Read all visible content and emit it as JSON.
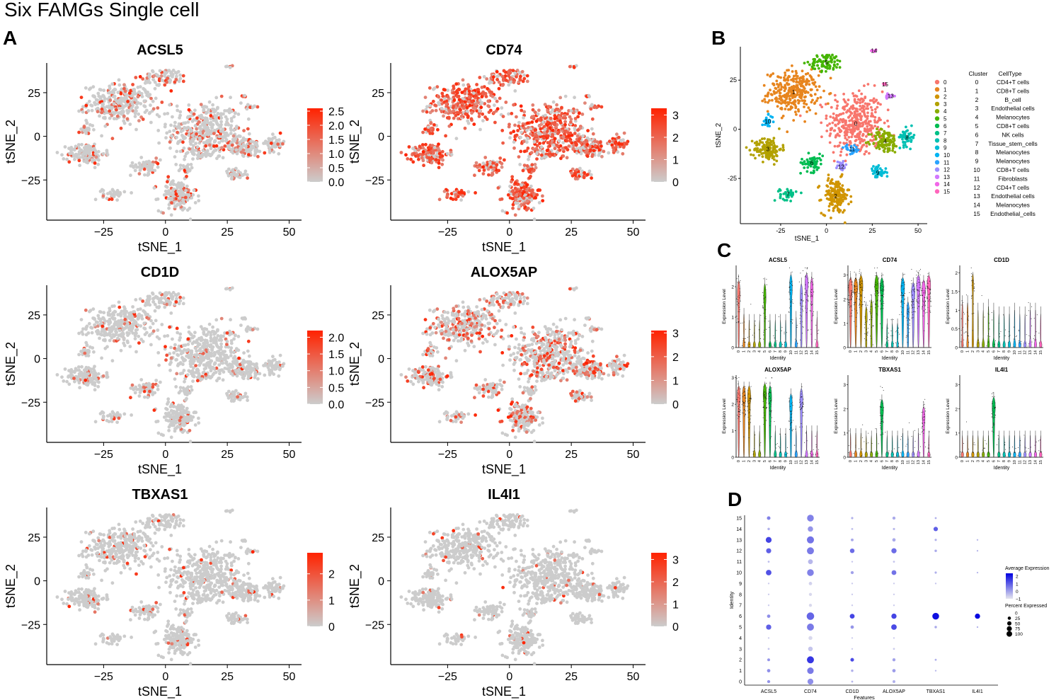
{
  "figure": {
    "title": "Six FAMGs Single cell",
    "panel_labels": [
      "A",
      "B",
      "C",
      "D"
    ]
  },
  "chart_data": [
    {
      "id": "A",
      "type": "scatter",
      "subtype": "tsne-feature-plots",
      "xlabel": "tSNE_1",
      "ylabel": "tSNE_2",
      "xlim": [
        -48,
        55
      ],
      "ylim": [
        -48,
        42
      ],
      "xticks": [
        -25,
        0,
        25,
        50
      ],
      "yticks": [
        -25,
        0,
        25
      ],
      "xtick_labels": [
        "−25",
        "0",
        "25",
        "50"
      ],
      "ytick_labels": [
        "−25",
        "0",
        "25"
      ],
      "low_color": "#cccccc",
      "high_color": "#ff2200",
      "features": [
        {
          "name": "ACSL5",
          "legend_max": 2.6,
          "legend_ticks": [
            0.0,
            0.5,
            1.0,
            1.5,
            2.0,
            2.5
          ],
          "legend_labels": [
            "0.0",
            "0.5",
            "1.0",
            "1.5",
            "2.0",
            "2.5"
          ],
          "expressing_fraction": 0.22
        },
        {
          "name": "CD74",
          "legend_max": 3.3,
          "legend_ticks": [
            0,
            1,
            2,
            3
          ],
          "legend_labels": [
            "0",
            "1",
            "2",
            "3"
          ],
          "expressing_fraction": 0.78
        },
        {
          "name": "CD1D",
          "legend_max": 2.2,
          "legend_ticks": [
            0.0,
            0.5,
            1.0,
            1.5,
            2.0
          ],
          "legend_labels": [
            "0.0",
            "0.5",
            "1.0",
            "1.5",
            "2.0"
          ],
          "expressing_fraction": 0.1
        },
        {
          "name": "ALOX5AP",
          "legend_max": 3.1,
          "legend_ticks": [
            0,
            1,
            2,
            3
          ],
          "legend_labels": [
            "0",
            "1",
            "2",
            "3"
          ],
          "expressing_fraction": 0.3
        },
        {
          "name": "TBXAS1",
          "legend_max": 2.8,
          "legend_ticks": [
            0,
            1,
            2
          ],
          "legend_labels": [
            "0",
            "1",
            "2"
          ],
          "expressing_fraction": 0.06
        },
        {
          "name": "IL4I1",
          "legend_max": 3.3,
          "legend_ticks": [
            0,
            1,
            2,
            3
          ],
          "legend_labels": [
            "0",
            "1",
            "2",
            "3"
          ],
          "expressing_fraction": 0.04
        }
      ]
    },
    {
      "id": "B",
      "type": "scatter",
      "subtype": "tsne-clusters",
      "xlabel": "tSNE_1",
      "ylabel": "tSNE_2",
      "xlim": [
        -47,
        55
      ],
      "ylim": [
        -48,
        42
      ],
      "xticks": [
        -25,
        0,
        25,
        50
      ],
      "yticks": [
        -25,
        0,
        25
      ],
      "xtick_labels": [
        "-25",
        "0",
        "25",
        "50"
      ],
      "ytick_labels": [
        "-25",
        "0",
        "25"
      ],
      "table_header": [
        "Cluster",
        "CellType"
      ],
      "clusters": [
        {
          "id": "0",
          "cell_type": "CD4+T cells",
          "color": "#F8766D",
          "center": [
            16,
            3
          ],
          "spread": [
            10,
            11
          ],
          "n": 380
        },
        {
          "id": "1",
          "cell_type": "CD8+T cells",
          "color": "#E7851E",
          "center": [
            -18,
            19
          ],
          "spread": [
            9,
            7
          ],
          "n": 300
        },
        {
          "id": "2",
          "cell_type": "B_cell",
          "color": "#D09400",
          "center": [
            5,
            -34
          ],
          "spread": [
            5,
            6
          ],
          "n": 160
        },
        {
          "id": "3",
          "cell_type": "Endothelial cells",
          "color": "#B2A100",
          "center": [
            -32,
            -10
          ],
          "spread": [
            5,
            4
          ],
          "n": 140
        },
        {
          "id": "4",
          "cell_type": "Melanocytes",
          "color": "#89AC00",
          "center": [
            32,
            -6
          ],
          "spread": [
            5,
            4
          ],
          "n": 110
        },
        {
          "id": "5",
          "cell_type": "CD8+T cells",
          "color": "#45B500",
          "center": [
            0,
            34
          ],
          "spread": [
            6,
            3
          ],
          "n": 80
        },
        {
          "id": "6",
          "cell_type": "NK cells",
          "color": "#00BC51",
          "center": [
            -8,
            -17
          ],
          "spread": [
            4,
            3
          ],
          "n": 60
        },
        {
          "id": "7",
          "cell_type": "Tissue_stem_cells",
          "color": "#00C087",
          "center": [
            -21,
            -33
          ],
          "spread": [
            3,
            2
          ],
          "n": 40
        },
        {
          "id": "8",
          "cell_type": "Melanocytes",
          "color": "#00C0B2",
          "center": [
            44,
            -4
          ],
          "spread": [
            3,
            3
          ],
          "n": 45
        },
        {
          "id": "9",
          "cell_type": "Melanocytes",
          "color": "#00BCD6",
          "center": [
            28,
            -22
          ],
          "spread": [
            3,
            2
          ],
          "n": 40
        },
        {
          "id": "10",
          "cell_type": "CD8+T cells",
          "color": "#00B3F2",
          "center": [
            -32,
            4
          ],
          "spread": [
            2,
            2
          ],
          "n": 25
        },
        {
          "id": "11",
          "cell_type": "Fibroblasts",
          "color": "#29A3FF",
          "center": [
            14,
            -10
          ],
          "spread": [
            3,
            1.5
          ],
          "n": 25
        },
        {
          "id": "12",
          "cell_type": "CD4+T cells",
          "color": "#9C8DFF",
          "center": [
            8,
            -19
          ],
          "spread": [
            2,
            2
          ],
          "n": 25
        },
        {
          "id": "13",
          "cell_type": "Endothelial  cells",
          "color": "#D277FF",
          "center": [
            35,
            17
          ],
          "spread": [
            2,
            1
          ],
          "n": 12
        },
        {
          "id": "14",
          "cell_type": "Melanocytes",
          "color": "#F166E8",
          "center": [
            26,
            40
          ],
          "spread": [
            1,
            0.5
          ],
          "n": 5
        },
        {
          "id": "15",
          "cell_type": "Endothelial_cells",
          "color": "#FF65BC",
          "center": [
            32,
            23
          ],
          "spread": [
            1,
            0.5
          ],
          "n": 5
        }
      ]
    },
    {
      "id": "C",
      "type": "violin",
      "xlabel": "Identity",
      "ylabel": "Expression Level",
      "categories": [
        "0",
        "1",
        "2",
        "3",
        "4",
        "5",
        "6",
        "7",
        "8",
        "9",
        "10",
        "11",
        "12",
        "13",
        "14",
        "15"
      ],
      "genes": [
        {
          "name": "ACSL5",
          "ymax": 2.7,
          "yticks": [
            0,
            1,
            2
          ],
          "medians": [
            1.5,
            0.4,
            0.2,
            0.2,
            0.2,
            1.4,
            0.2,
            0.2,
            0.2,
            0.2,
            1.7,
            0.3,
            1.4,
            1.9,
            1.6,
            0.3
          ],
          "expressing": [
            0.7,
            0.2,
            0.1,
            0.1,
            0.05,
            0.6,
            0.1,
            0.1,
            0.05,
            0.1,
            0.7,
            0.1,
            0.6,
            0.8,
            0.7,
            0.1
          ]
        },
        {
          "name": "CD74",
          "ymax": 3.4,
          "yticks": [
            0,
            1,
            2,
            3
          ],
          "medians": [
            2.2,
            2.2,
            2.3,
            1.0,
            1.3,
            2.3,
            2.2,
            0.3,
            0.3,
            0.3,
            2.2,
            1.2,
            2.0,
            2.3,
            2.1,
            2.3
          ],
          "expressing": [
            0.95,
            0.95,
            0.95,
            0.5,
            0.5,
            0.95,
            0.9,
            0.2,
            0.2,
            0.3,
            0.9,
            0.6,
            0.9,
            0.95,
            0.9,
            0.9
          ]
        },
        {
          "name": "CD1D",
          "ymax": 2.2,
          "yticks": [
            0.0,
            0.5,
            1.0,
            1.5,
            2.0
          ],
          "medians": [
            0.5,
            0.5,
            1.5,
            0.3,
            0.3,
            0.4,
            0.3,
            0.2,
            0.2,
            0.2,
            0.3,
            0.2,
            0.2,
            0.3,
            0.3,
            0.2
          ],
          "expressing": [
            0.3,
            0.3,
            0.4,
            0.05,
            0.05,
            0.2,
            0.05,
            0.05,
            0.05,
            0.05,
            0.1,
            0.05,
            0.05,
            0.2,
            0.1,
            0.05
          ]
        },
        {
          "name": "ALOX5AP",
          "ymax": 3.1,
          "yticks": [
            0,
            1,
            2,
            3
          ],
          "medians": [
            2.0,
            2.0,
            2.0,
            0.3,
            0.3,
            2.1,
            2.0,
            0.3,
            0.2,
            0.2,
            1.7,
            0.3,
            1.9,
            0.3,
            0.3,
            0.3
          ],
          "expressing": [
            0.8,
            0.8,
            0.8,
            0.05,
            0.05,
            0.85,
            0.8,
            0.05,
            0.05,
            0.05,
            0.7,
            0.05,
            0.75,
            0.1,
            0.1,
            0.1
          ]
        },
        {
          "name": "TBXAS1",
          "ymax": 3.4,
          "yticks": [
            0,
            1,
            2,
            3
          ],
          "medians": [
            0.3,
            0.3,
            0.3,
            0.2,
            0.2,
            0.3,
            1.7,
            0.2,
            0.2,
            0.2,
            0.3,
            0.2,
            0.2,
            0.3,
            1.4,
            0.2
          ],
          "expressing": [
            0.05,
            0.05,
            0.05,
            0.02,
            0.02,
            0.05,
            0.8,
            0.02,
            0.02,
            0.02,
            0.05,
            0.02,
            0.05,
            0.05,
            0.7,
            0.05
          ]
        },
        {
          "name": "IL4I1",
          "ymax": 3.4,
          "yticks": [
            0,
            1,
            2,
            3
          ],
          "medians": [
            0.2,
            0.2,
            0.2,
            0.2,
            0.2,
            0.2,
            1.8,
            0.2,
            0.2,
            0.2,
            0.2,
            0.2,
            0.2,
            0.2,
            0.2,
            0.2
          ],
          "expressing": [
            0.03,
            0.03,
            0.03,
            0.02,
            0.02,
            0.03,
            0.8,
            0.02,
            0.02,
            0.02,
            0.03,
            0.02,
            0.03,
            0.03,
            0.03,
            0.03
          ]
        }
      ]
    },
    {
      "id": "D",
      "type": "dotplot",
      "xlabel": "Features",
      "ylabel": "Identity",
      "features": [
        "ACSL5",
        "CD74",
        "CD1D",
        "ALOX5AP",
        "TBXAS1",
        "IL4I1"
      ],
      "identities": [
        "0",
        "1",
        "2",
        "3",
        "4",
        "5",
        "6",
        "7",
        "8",
        "9",
        "10",
        "11",
        "12",
        "13",
        "14",
        "15"
      ],
      "legend_avg_title": "Average Expression",
      "legend_avg_ticks": [
        "2",
        "1",
        "0",
        "−1"
      ],
      "legend_avg_range": [
        -1,
        2.4
      ],
      "legend_pct_title": "Percent Expressed",
      "legend_pct_values": [
        0,
        25,
        50,
        75,
        100
      ],
      "legend_pct_labels": [
        "0",
        "25",
        "50",
        "75",
        "100"
      ],
      "low_color": "#e6e6ee",
      "high_color": "#0000e0",
      "pct": [
        [
          8,
          40,
          2,
          6,
          0,
          0
        ],
        [
          10,
          50,
          4,
          10,
          1,
          0
        ],
        [
          6,
          60,
          12,
          8,
          2,
          0
        ],
        [
          2,
          22,
          1,
          2,
          0,
          0
        ],
        [
          1,
          15,
          1,
          1,
          0,
          0
        ],
        [
          30,
          60,
          10,
          35,
          4,
          1
        ],
        [
          10,
          70,
          25,
          30,
          55,
          30
        ],
        [
          1,
          8,
          1,
          1,
          0,
          0
        ],
        [
          1,
          8,
          1,
          1,
          0,
          0
        ],
        [
          1,
          10,
          1,
          1,
          1,
          0
        ],
        [
          35,
          55,
          8,
          25,
          3,
          1
        ],
        [
          2,
          25,
          1,
          2,
          0,
          0
        ],
        [
          28,
          60,
          22,
          30,
          4,
          1
        ],
        [
          40,
          62,
          6,
          10,
          3,
          1
        ],
        [
          4,
          32,
          2,
          3,
          20,
          0
        ],
        [
          12,
          55,
          3,
          8,
          2,
          0
        ]
      ],
      "avg": [
        [
          0.2,
          0.3,
          -0.3,
          -0.2,
          -0.4,
          -0.4
        ],
        [
          0.3,
          0.6,
          -0.2,
          0.1,
          -0.3,
          -0.4
        ],
        [
          0.2,
          1.6,
          1.3,
          0.0,
          -0.2,
          -0.3
        ],
        [
          -0.5,
          -0.5,
          -0.6,
          -0.6,
          -0.5,
          -0.5
        ],
        [
          -0.6,
          -0.8,
          -0.6,
          -0.6,
          -0.5,
          -0.5
        ],
        [
          1.0,
          0.6,
          0.2,
          1.3,
          -0.1,
          -0.2
        ],
        [
          0.3,
          0.9,
          1.4,
          1.4,
          2.2,
          2.3
        ],
        [
          -0.6,
          -0.8,
          -0.6,
          -0.6,
          -0.5,
          -0.5
        ],
        [
          -0.6,
          -0.8,
          -0.6,
          -0.6,
          -0.5,
          -0.5
        ],
        [
          -0.6,
          -0.7,
          -0.6,
          -0.6,
          -0.5,
          -0.5
        ],
        [
          1.2,
          0.5,
          0.0,
          0.7,
          -0.2,
          -0.3
        ],
        [
          -0.4,
          -0.3,
          -0.5,
          -0.5,
          -0.5,
          -0.5
        ],
        [
          1.0,
          0.6,
          0.8,
          0.8,
          -0.1,
          -0.3
        ],
        [
          1.4,
          0.7,
          -0.1,
          -0.1,
          -0.2,
          -0.3
        ],
        [
          -0.2,
          0.2,
          -0.4,
          -0.3,
          1.0,
          -0.4
        ],
        [
          0.5,
          0.5,
          -0.2,
          -0.1,
          -0.2,
          -0.3
        ]
      ]
    }
  ]
}
